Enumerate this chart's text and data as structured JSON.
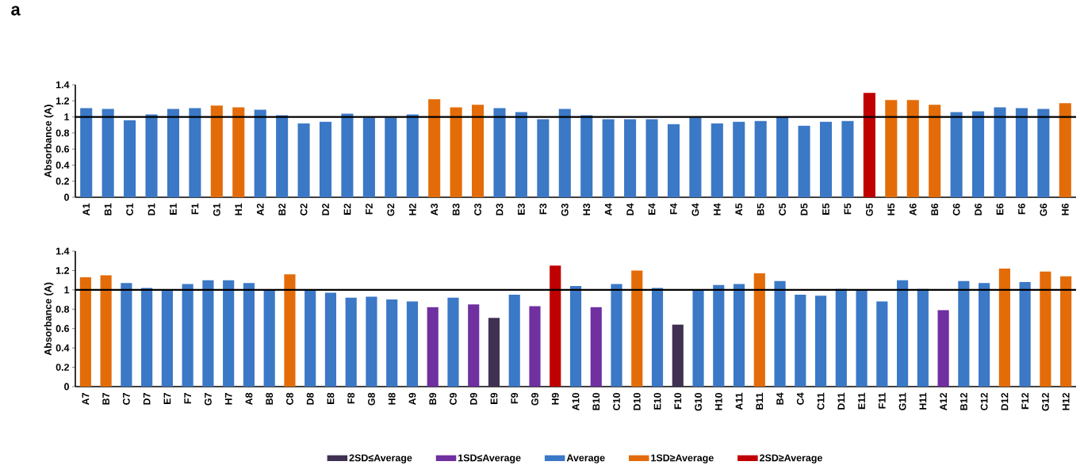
{
  "chart_data": [
    {
      "type": "bar",
      "annotations": [
        "a"
      ],
      "ylabel": "Absorbance (A)",
      "categories": [
        "A1",
        "B1",
        "C1",
        "D1",
        "E1",
        "F1",
        "G1",
        "H1",
        "A2",
        "B2",
        "C2",
        "D2",
        "E2",
        "F2",
        "G2",
        "H2",
        "A3",
        "B3",
        "C3",
        "D3",
        "E3",
        "F3",
        "G3",
        "H3",
        "A4",
        "D4",
        "E4",
        "F4",
        "G4",
        "H4",
        "A5",
        "B5",
        "C5",
        "D5",
        "E5",
        "F5",
        "G5",
        "H5",
        "A6",
        "B6",
        "C6",
        "D6",
        "E6",
        "F6",
        "G6",
        "H6"
      ],
      "series": [
        {
          "color": "#3b78c6",
          "values": [
            1.11,
            1.1,
            0.96,
            1.03,
            1.1,
            1.11,
            null,
            null,
            1.09,
            1.02,
            0.92,
            0.94,
            1.04,
            0.99,
            0.99,
            1.03,
            null,
            null,
            null,
            1.11,
            1.06,
            0.97,
            1.1,
            1.02,
            0.97,
            0.97,
            0.97,
            0.91,
            0.99,
            0.92,
            0.94,
            0.95,
            1.0,
            0.89,
            0.94,
            0.95,
            null,
            null,
            null,
            null,
            1.06,
            1.07,
            1.12,
            1.11,
            1.1,
            null
          ]
        },
        {
          "color": "#e36c09",
          "values": [
            null,
            null,
            null,
            null,
            null,
            null,
            1.14,
            1.12,
            null,
            null,
            null,
            null,
            null,
            null,
            null,
            null,
            1.22,
            1.12,
            1.15,
            null,
            null,
            null,
            null,
            null,
            null,
            null,
            null,
            null,
            null,
            null,
            null,
            null,
            null,
            null,
            null,
            null,
            null,
            1.21,
            1.21,
            1.15,
            null,
            null,
            null,
            null,
            null,
            1.17
          ]
        },
        {
          "color": "#c00000",
          "values": [
            null,
            null,
            null,
            null,
            null,
            null,
            null,
            null,
            null,
            null,
            null,
            null,
            null,
            null,
            null,
            null,
            null,
            null,
            null,
            null,
            null,
            null,
            null,
            null,
            null,
            null,
            null,
            null,
            null,
            null,
            null,
            null,
            null,
            null,
            null,
            null,
            1.3,
            null,
            null,
            null,
            null,
            null,
            null,
            null,
            null,
            null
          ]
        }
      ],
      "ylim": [
        0,
        1.4
      ],
      "yticks": [
        0,
        0.2,
        0.4,
        0.6,
        0.8,
        1,
        1.2,
        1.4
      ],
      "ref_lines": [
        {
          "axis": "y",
          "value": 1,
          "color": "#000000"
        }
      ],
      "legend": false
    },
    {
      "type": "bar",
      "ylabel": "Absorbance (A)",
      "categories": [
        "A7",
        "B7",
        "C7",
        "D7",
        "E7",
        "F7",
        "G7",
        "H7",
        "A8",
        "B8",
        "C8",
        "D8",
        "E8",
        "F8",
        "G8",
        "H8",
        "A9",
        "B9",
        "C9",
        "D9",
        "E9",
        "F9",
        "G9",
        "H9",
        "A10",
        "B10",
        "C10",
        "D10",
        "E10",
        "F10",
        "G10",
        "H10",
        "A11",
        "B11",
        "B4",
        "C4",
        "C11",
        "D11",
        "E11",
        "F11",
        "G11",
        "H11",
        "A12",
        "B12",
        "C12",
        "D12",
        "F12",
        "G12",
        "H12"
      ],
      "series": [
        {
          "name": "2SD≤Average",
          "color": "#403152",
          "values": [
            null,
            null,
            null,
            null,
            null,
            null,
            null,
            null,
            null,
            null,
            null,
            null,
            null,
            null,
            null,
            null,
            null,
            null,
            null,
            null,
            0.71,
            null,
            null,
            null,
            null,
            null,
            null,
            null,
            null,
            0.64,
            null,
            null,
            null,
            null,
            null,
            null,
            null,
            null,
            null,
            null,
            null,
            null,
            null,
            null,
            null,
            null,
            null,
            null,
            null
          ]
        },
        {
          "name": "1SD≤Average",
          "color": "#7030a0",
          "values": [
            null,
            null,
            null,
            null,
            null,
            null,
            null,
            null,
            null,
            null,
            null,
            null,
            null,
            null,
            null,
            null,
            null,
            0.82,
            null,
            0.85,
            null,
            null,
            0.83,
            null,
            null,
            0.82,
            null,
            null,
            null,
            null,
            null,
            null,
            null,
            null,
            null,
            null,
            null,
            null,
            null,
            null,
            null,
            null,
            0.79,
            null,
            null,
            null,
            null,
            null,
            null
          ]
        },
        {
          "name": "Average",
          "color": "#3b78c6",
          "values": [
            null,
            null,
            1.07,
            1.02,
            0.99,
            1.06,
            1.1,
            1.1,
            1.07,
            0.99,
            null,
            0.99,
            0.97,
            0.92,
            0.93,
            0.9,
            0.88,
            null,
            0.92,
            null,
            null,
            0.95,
            null,
            null,
            1.04,
            null,
            1.06,
            null,
            1.02,
            null,
            0.99,
            1.05,
            1.06,
            null,
            1.09,
            0.95,
            0.94,
            1.01,
            1.0,
            0.88,
            1.1,
            1.01,
            null,
            1.09,
            1.07,
            null,
            1.08,
            null,
            null
          ]
        },
        {
          "name": "1SD≥Average",
          "color": "#e36c09",
          "values": [
            1.13,
            1.15,
            null,
            null,
            null,
            null,
            null,
            null,
            null,
            null,
            1.16,
            null,
            null,
            null,
            null,
            null,
            null,
            null,
            null,
            null,
            null,
            null,
            null,
            null,
            null,
            null,
            null,
            1.2,
            null,
            null,
            null,
            null,
            null,
            1.17,
            null,
            null,
            null,
            null,
            null,
            null,
            null,
            null,
            null,
            null,
            null,
            1.22,
            null,
            1.19,
            1.14
          ]
        },
        {
          "name": "2SD≥Average",
          "color": "#c00000",
          "values": [
            null,
            null,
            null,
            null,
            null,
            null,
            null,
            null,
            null,
            null,
            null,
            null,
            null,
            null,
            null,
            null,
            null,
            null,
            null,
            null,
            null,
            null,
            null,
            1.25,
            null,
            null,
            null,
            null,
            null,
            null,
            null,
            null,
            null,
            null,
            null,
            null,
            null,
            null,
            null,
            null,
            null,
            null,
            null,
            null,
            null,
            null,
            null,
            null,
            null
          ]
        }
      ],
      "ylim": [
        0,
        1.4
      ],
      "yticks": [
        0,
        0.2,
        0.4,
        0.6,
        0.8,
        1,
        1.2,
        1.4
      ],
      "ref_lines": [
        {
          "axis": "y",
          "value": 1,
          "color": "#000000"
        }
      ],
      "legend": "bottom"
    }
  ]
}
